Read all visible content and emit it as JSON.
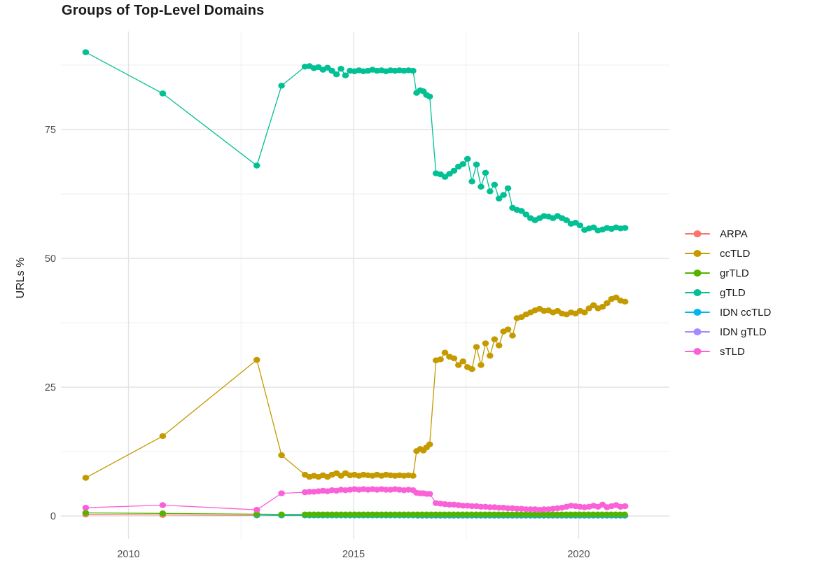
{
  "title": "Groups of Top-Level Domains",
  "legend": {
    "items": [
      {
        "label": "ARPA",
        "color": "#F8766D"
      },
      {
        "label": "ccTLD",
        "color": "#C49A00"
      },
      {
        "label": "grTLD",
        "color": "#53B400"
      },
      {
        "label": "gTLD",
        "color": "#00C094"
      },
      {
        "label": "IDN ccTLD",
        "color": "#00B6EB"
      },
      {
        "label": "IDN gTLD",
        "color": "#A58AFF"
      },
      {
        "label": "sTLD",
        "color": "#FB61D7"
      }
    ]
  },
  "chart_data": {
    "type": "line",
    "title": "Groups of Top-Level Domains",
    "xlabel": "",
    "ylabel": "URLs %",
    "grid": "major+minor",
    "legend_position": "right",
    "x_axis": {
      "range": [
        2008.7,
        2022.0
      ],
      "ticks": [
        {
          "value": 2010,
          "label": "2010"
        },
        {
          "value": 2015,
          "label": "2015"
        },
        {
          "value": 2020,
          "label": "2020"
        }
      ],
      "minor": [
        2012.5,
        2017.5
      ]
    },
    "y_axis": {
      "range": [
        -4.5,
        94
      ],
      "ticks": [
        {
          "value": 0,
          "label": "0"
        },
        {
          "value": 25,
          "label": "25"
        },
        {
          "value": 50,
          "label": "50"
        },
        {
          "value": 75,
          "label": "75"
        }
      ],
      "minor": [
        12.5,
        37.5,
        62.5,
        87.5
      ]
    },
    "series": [
      {
        "name": "ARPA",
        "color": "#F8766D",
        "points": [
          [
            2009.05,
            0.3
          ],
          [
            2010.76,
            0.2
          ],
          [
            2012.85,
            0.1
          ]
        ],
        "runs": []
      },
      {
        "name": "IDN gTLD",
        "color": "#A58AFF",
        "points": [],
        "runs": [
          {
            "from": 2016.43,
            "to": 2021.03,
            "step": 0.1,
            "value": 0.05
          }
        ]
      },
      {
        "name": "IDN ccTLD",
        "color": "#00B6EB",
        "points": [
          [
            2012.85,
            0.15
          ],
          [
            2013.4,
            0.1
          ]
        ],
        "runs": [
          {
            "from": 2013.92,
            "to": 2021.03,
            "step": 0.1,
            "value": 0.1
          }
        ]
      },
      {
        "name": "grTLD",
        "color": "#53B400",
        "points": [
          [
            2009.05,
            0.6
          ],
          [
            2010.76,
            0.5
          ],
          [
            2012.85,
            0.35
          ],
          [
            2013.4,
            0.3
          ]
        ],
        "runs": [
          {
            "from": 2013.92,
            "to": 2021.03,
            "step": 0.1,
            "value": 0.3
          }
        ]
      },
      {
        "name": "ccTLD",
        "color": "#C49A00",
        "points": [
          [
            2009.05,
            7.4
          ],
          [
            2010.76,
            15.5
          ],
          [
            2012.85,
            30.3
          ],
          [
            2013.4,
            11.8
          ],
          [
            2016.4,
            12.6
          ],
          [
            2016.48,
            13.0
          ],
          [
            2016.55,
            12.7
          ],
          [
            2016.62,
            13.3
          ],
          [
            2016.69,
            13.9
          ]
        ],
        "runs": [
          {
            "from": 2013.92,
            "step": 0.1,
            "values": [
              8.0,
              7.6,
              7.8,
              7.6,
              7.9,
              7.6,
              8.0,
              8.3,
              7.8,
              8.3,
              7.9,
              8.0,
              7.8,
              8.0,
              7.9,
              7.8,
              8.0,
              7.8,
              8.0,
              7.9,
              7.8,
              7.9,
              7.8,
              7.9,
              7.8
            ]
          },
          {
            "from": 2016.83,
            "step": 0.1,
            "values": [
              30.2,
              30.4,
              31.7,
              30.9,
              30.6,
              29.3,
              30.0,
              28.9,
              28.5,
              32.8,
              29.3,
              33.5,
              31.1,
              34.3,
              33.1,
              35.8,
              36.2,
              35.0,
              38.4,
              38.6,
              39.1,
              39.5,
              39.9,
              40.2,
              39.8,
              39.9,
              39.5,
              39.8,
              39.3,
              39.1,
              39.5,
              39.3,
              39.8,
              39.5,
              40.3,
              40.9,
              40.3,
              40.6,
              41.3,
              42.1,
              42.4,
              41.8,
              41.6
            ]
          }
        ]
      },
      {
        "name": "gTLD",
        "color": "#00C094",
        "points": [
          [
            2009.05,
            90.0
          ],
          [
            2010.76,
            82.0
          ],
          [
            2012.85,
            68.0
          ],
          [
            2013.4,
            83.5
          ],
          [
            2016.4,
            82.1
          ],
          [
            2016.48,
            82.6
          ],
          [
            2016.55,
            82.4
          ],
          [
            2016.62,
            81.7
          ],
          [
            2016.69,
            81.4
          ]
        ],
        "runs": [
          {
            "from": 2013.92,
            "step": 0.1,
            "values": [
              87.2,
              87.3,
              86.9,
              87.1,
              86.6,
              87.0,
              86.4,
              85.7,
              86.8,
              85.5,
              86.4,
              86.3,
              86.5,
              86.3,
              86.4,
              86.6,
              86.4,
              86.5,
              86.3,
              86.5,
              86.4,
              86.5,
              86.4,
              86.5,
              86.4
            ]
          },
          {
            "from": 2016.83,
            "step": 0.1,
            "values": [
              66.5,
              66.3,
              65.8,
              66.4,
              67.0,
              67.8,
              68.3,
              69.3,
              64.9,
              68.2,
              63.9,
              66.6,
              63.0,
              64.3,
              61.6,
              62.3,
              63.6,
              59.8,
              59.4,
              59.2,
              58.5,
              57.8,
              57.4,
              57.8,
              58.2,
              58.1,
              57.8,
              58.2,
              57.8,
              57.4,
              56.7,
              56.9,
              56.4,
              55.5,
              55.8,
              56.0,
              55.4,
              55.6,
              55.9,
              55.7,
              56.0,
              55.8,
              55.9
            ]
          }
        ]
      },
      {
        "name": "sTLD",
        "color": "#FB61D7",
        "points": [
          [
            2009.05,
            1.6
          ],
          [
            2010.76,
            2.1
          ],
          [
            2012.85,
            1.2
          ],
          [
            2013.4,
            4.4
          ],
          [
            2016.4,
            4.5
          ],
          [
            2016.48,
            4.4
          ],
          [
            2016.55,
            4.4
          ],
          [
            2016.62,
            4.3
          ],
          [
            2016.69,
            4.3
          ]
        ],
        "runs": [
          {
            "from": 2013.92,
            "step": 0.1,
            "values": [
              4.6,
              4.7,
              4.7,
              4.8,
              4.9,
              4.8,
              5.0,
              4.9,
              5.1,
              5.0,
              5.1,
              5.2,
              5.1,
              5.2,
              5.1,
              5.2,
              5.1,
              5.2,
              5.1,
              5.1,
              5.2,
              5.1,
              5.0,
              5.1,
              5.0
            ]
          },
          {
            "from": 2016.83,
            "step": 0.1,
            "values": [
              2.5,
              2.4,
              2.3,
              2.2,
              2.2,
              2.1,
              2.0,
              2.0,
              1.9,
              1.9,
              1.8,
              1.8,
              1.7,
              1.7,
              1.6,
              1.6,
              1.5,
              1.5,
              1.4,
              1.4,
              1.3,
              1.3,
              1.3,
              1.2,
              1.3,
              1.3,
              1.4,
              1.5,
              1.6,
              1.8,
              2.0,
              1.9,
              1.8,
              1.7,
              1.8,
              2.0,
              1.8,
              2.2,
              1.7,
              1.9,
              2.1,
              1.8,
              1.9
            ]
          }
        ]
      }
    ]
  }
}
